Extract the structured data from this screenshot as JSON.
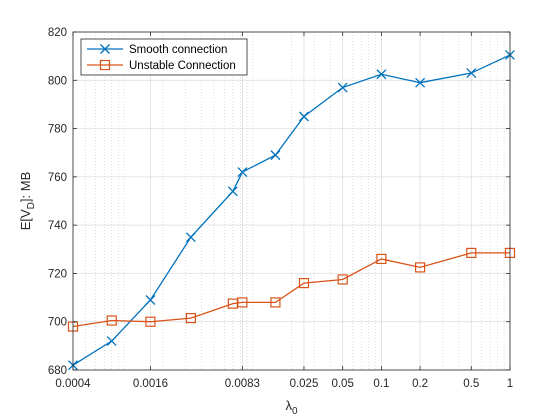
{
  "chart_data": {
    "type": "line",
    "title": "",
    "xscale": "log",
    "x": [
      0.0004,
      0.0008,
      0.0016,
      0.0033,
      0.007,
      0.0083,
      0.015,
      0.025,
      0.05,
      0.1,
      0.2,
      0.5,
      1
    ],
    "xticks": [
      0.0004,
      0.0016,
      0.0083,
      0.025,
      0.05,
      0.1,
      0.2,
      0.5,
      1
    ],
    "xtick_labels": [
      "0.0004",
      "0.0016",
      "0.0083",
      "0.025",
      "0.05",
      "0.1",
      "0.2",
      "0.5",
      "1"
    ],
    "xlim": [
      0.0004,
      1
    ],
    "ylim": [
      680,
      820
    ],
    "yticks": [
      680,
      700,
      720,
      740,
      760,
      780,
      800,
      820
    ],
    "xlabel": {
      "main": "λ",
      "sub": "0"
    },
    "ylabel": {
      "pre": "E[V",
      "sub": "D",
      "post": "]: MB"
    },
    "grid": true,
    "minor_grid_x": true,
    "legend_position": "top-left",
    "series": [
      {
        "name": "Smooth connection",
        "marker": "x",
        "color": "#0072BD",
        "values": [
          682,
          692,
          709,
          735,
          754,
          762,
          769,
          785,
          797,
          802.5,
          799,
          803,
          810.5
        ]
      },
      {
        "name": "Unstable Connection",
        "marker": "square",
        "color": "#D95319",
        "values": [
          698,
          700.5,
          700,
          701.5,
          707.5,
          708,
          708,
          716,
          717.5,
          726,
          722.5,
          728.5,
          728.5
        ]
      }
    ]
  }
}
